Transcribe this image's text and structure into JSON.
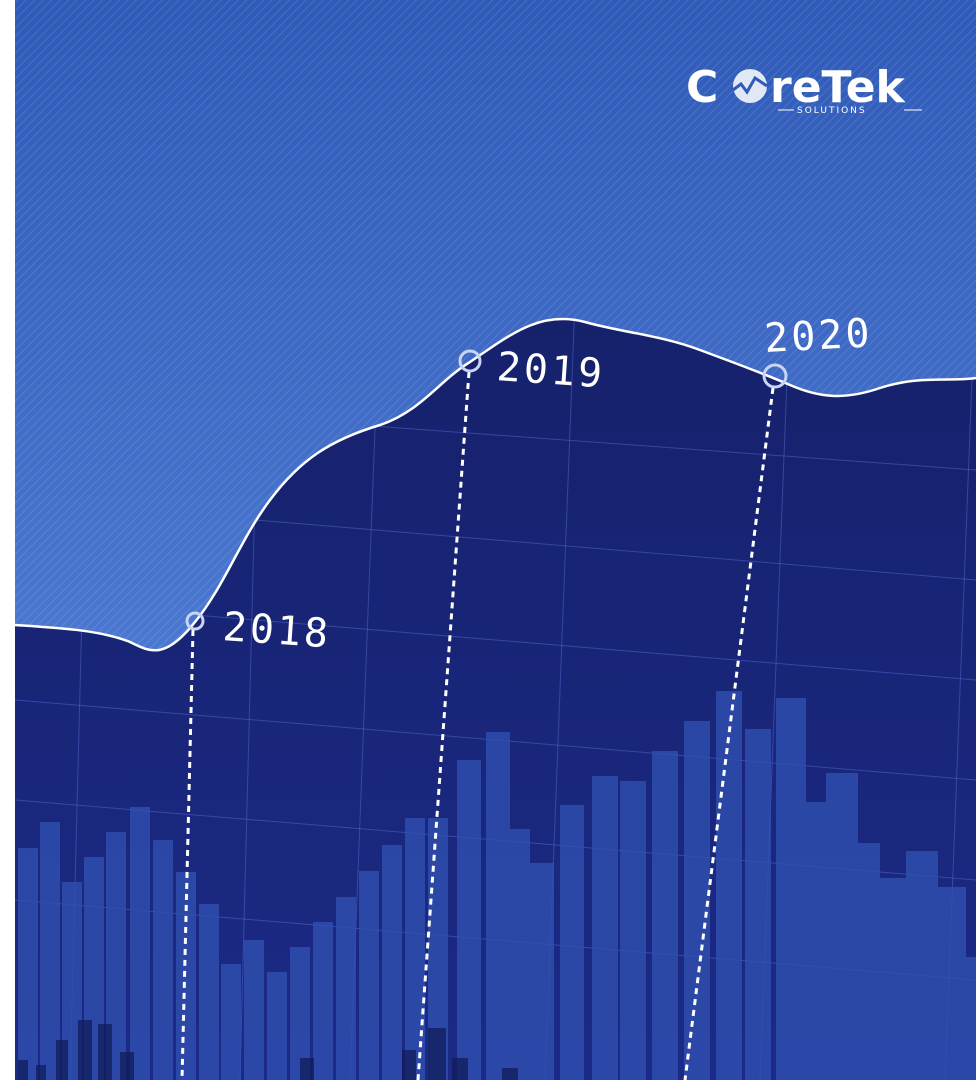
{
  "logo": {
    "prefix": "C",
    "suffix": "reTek",
    "tagline": "SOLUTIONS"
  },
  "milestones": [
    {
      "label": "2018"
    },
    {
      "label": "2019"
    },
    {
      "label": "2020"
    }
  ]
}
